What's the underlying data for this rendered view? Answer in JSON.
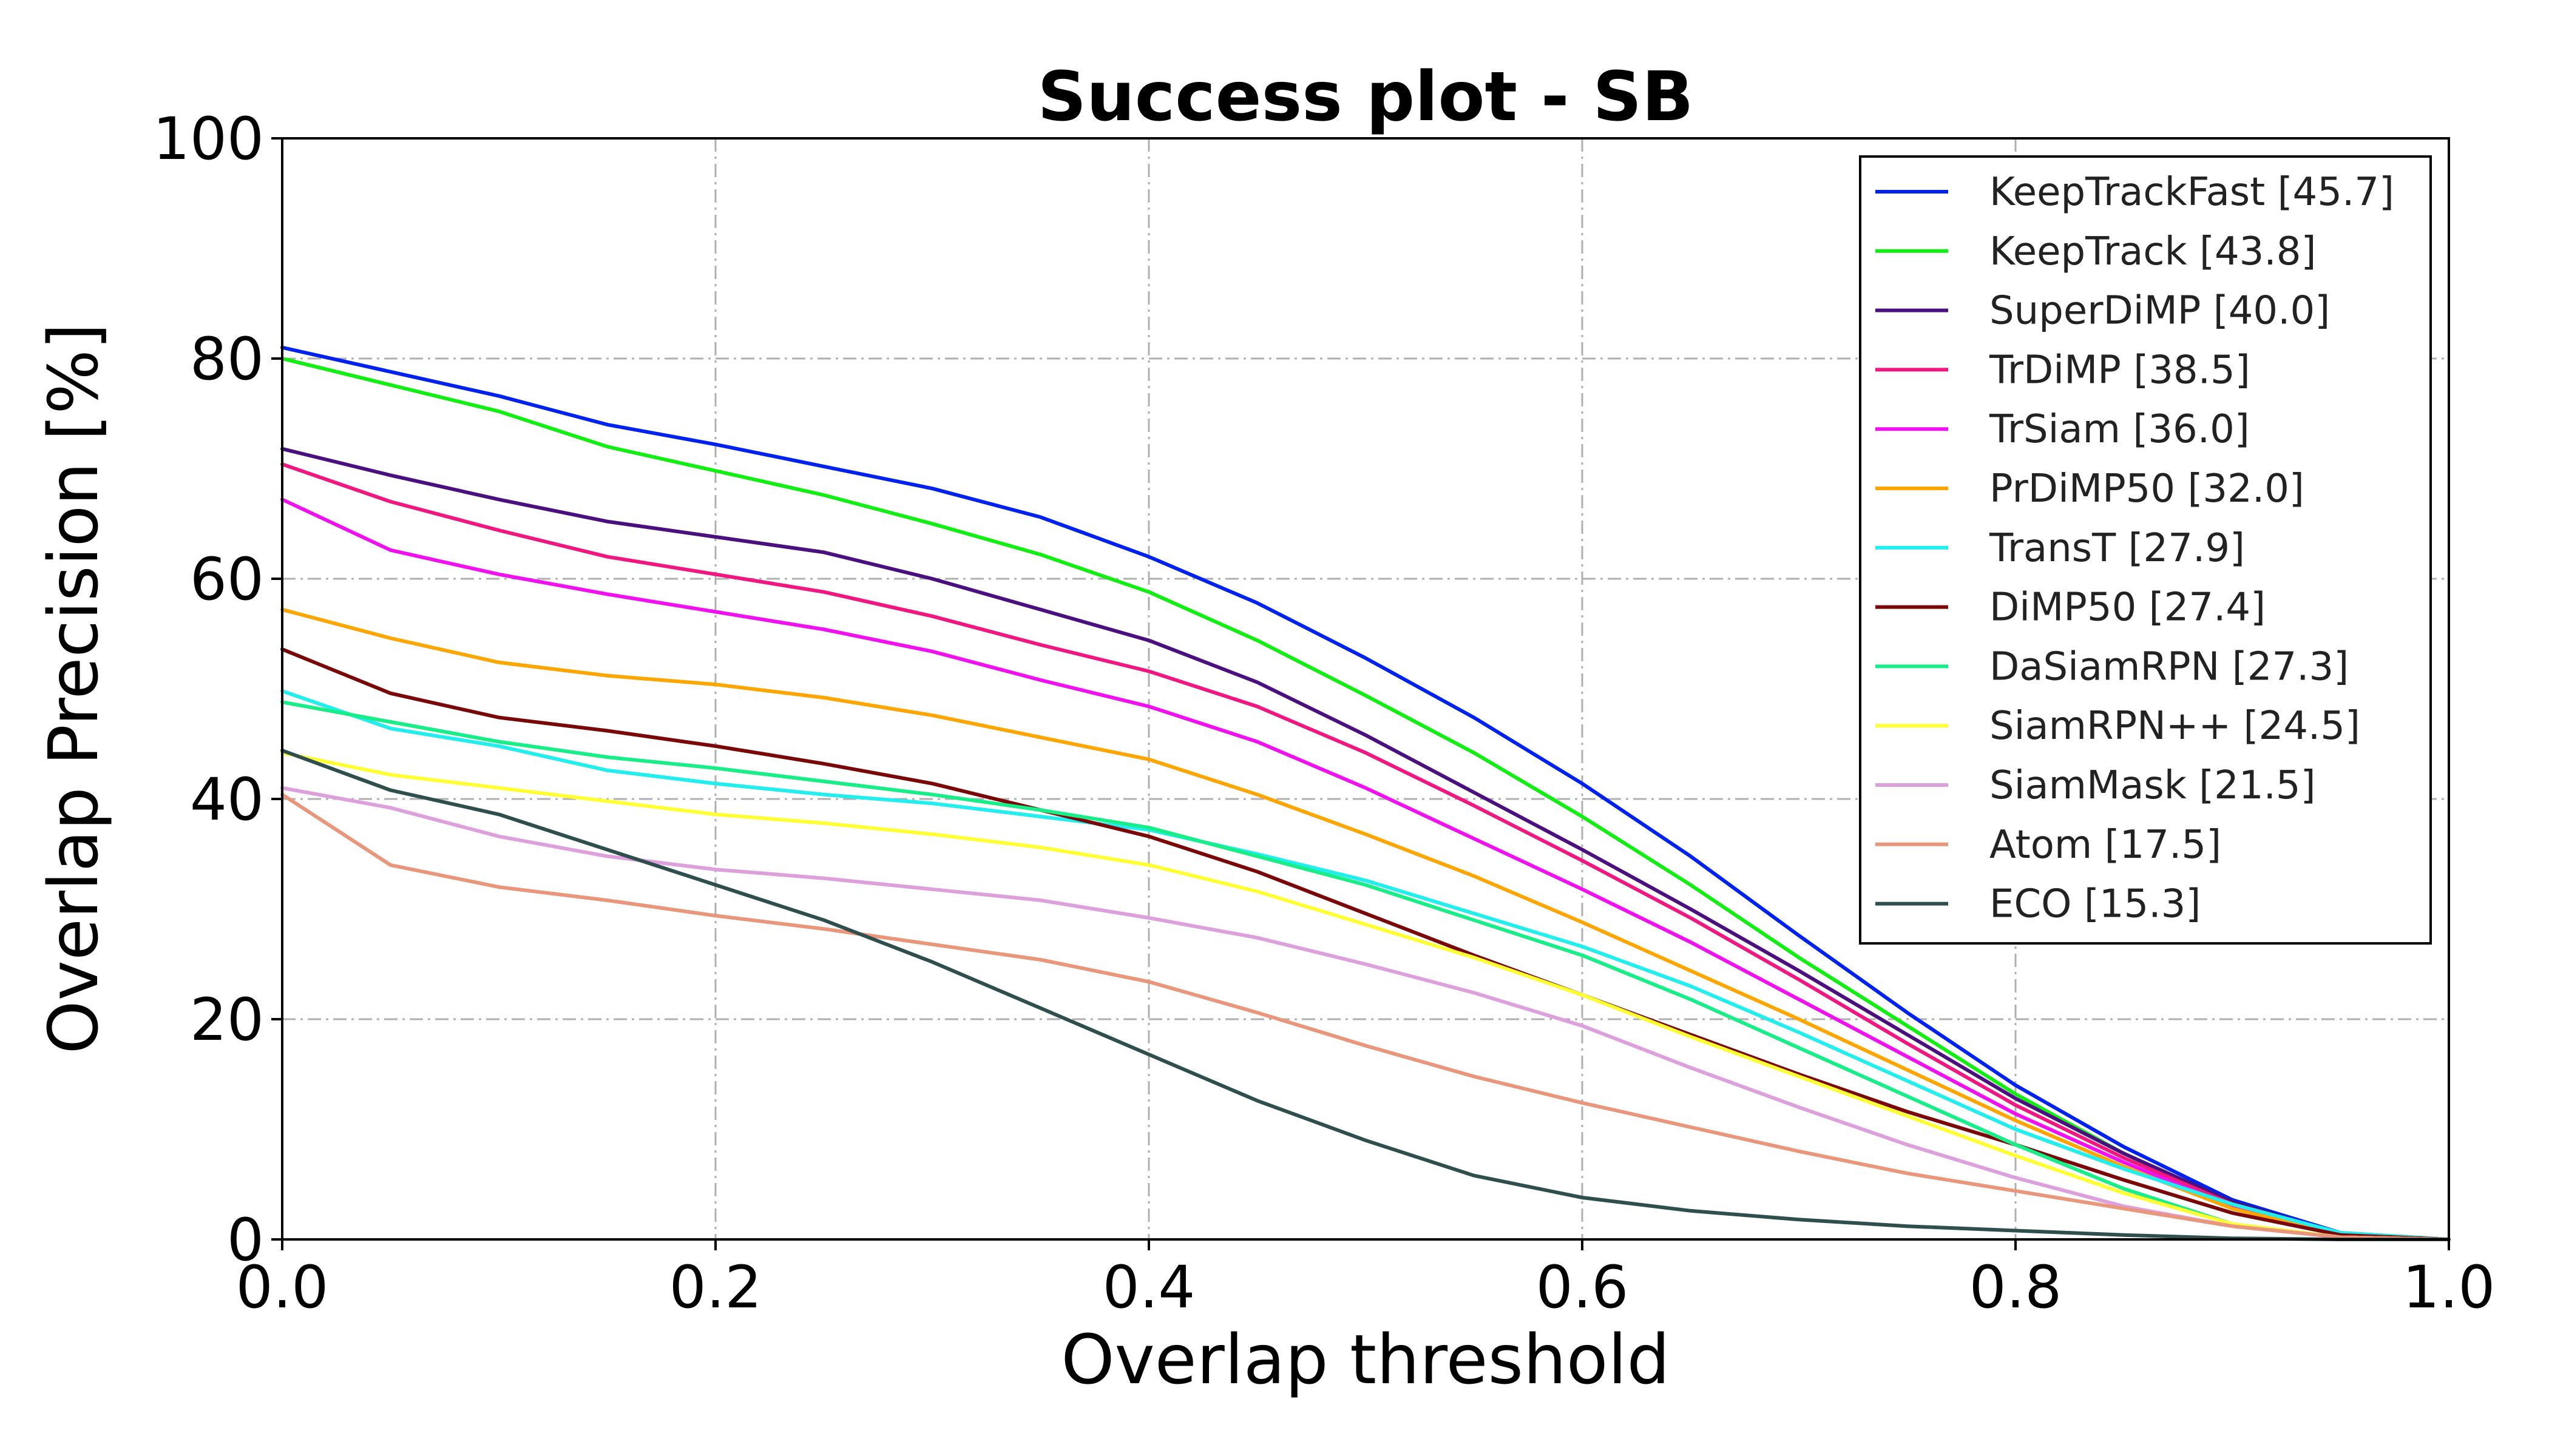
{
  "chart_data": {
    "type": "line",
    "title": "Success plot - SB",
    "xlabel": "Overlap threshold",
    "ylabel": "Overlap Precision [%]",
    "xlim": [
      0.0,
      1.0
    ],
    "ylim": [
      0,
      100
    ],
    "xticks": [
      "0.0",
      "0.2",
      "0.4",
      "0.6",
      "0.8",
      "1.0"
    ],
    "yticks": [
      "0",
      "20",
      "40",
      "60",
      "80",
      "100"
    ],
    "grid": true,
    "legend_position": "top-right",
    "x": [
      0.0,
      0.05,
      0.1,
      0.15,
      0.2,
      0.25,
      0.3,
      0.35,
      0.4,
      0.45,
      0.5,
      0.55,
      0.6,
      0.65,
      0.7,
      0.75,
      0.8,
      0.85,
      0.9,
      0.95,
      1.0
    ],
    "series": [
      {
        "name": "KeepTrackFast [45.7]",
        "color": "#0022ee",
        "values": [
          81.0,
          78.8,
          76.6,
          74.0,
          72.2,
          70.2,
          68.2,
          65.6,
          62.0,
          57.8,
          52.8,
          47.4,
          41.4,
          34.8,
          27.6,
          20.6,
          14.0,
          8.4,
          3.6,
          0.6,
          0.0
        ]
      },
      {
        "name": "KeepTrack [43.8]",
        "color": "#11ee11",
        "values": [
          80.0,
          77.6,
          75.2,
          72.0,
          69.8,
          67.6,
          65.0,
          62.2,
          58.8,
          54.4,
          49.4,
          44.2,
          38.4,
          32.2,
          25.6,
          19.4,
          13.2,
          7.8,
          3.2,
          0.5,
          0.0
        ]
      },
      {
        "name": "SuperDiMP [40.0]",
        "color": "#4b1080",
        "values": [
          71.8,
          69.4,
          67.2,
          65.2,
          63.8,
          62.4,
          60.0,
          57.2,
          54.4,
          50.6,
          45.8,
          40.6,
          35.4,
          30.0,
          24.4,
          18.6,
          12.8,
          7.8,
          3.4,
          0.5,
          0.0
        ]
      },
      {
        "name": "TrDiMP [38.5]",
        "color": "#f01880",
        "values": [
          70.4,
          67.0,
          64.4,
          62.0,
          60.4,
          58.8,
          56.6,
          54.0,
          51.6,
          48.4,
          44.2,
          39.4,
          34.4,
          29.2,
          23.6,
          17.8,
          12.2,
          7.4,
          3.2,
          0.5,
          0.0
        ]
      },
      {
        "name": "TrSiam [36.0]",
        "color": "#f010f0",
        "values": [
          67.2,
          62.6,
          60.4,
          58.6,
          57.0,
          55.4,
          53.4,
          50.8,
          48.4,
          45.2,
          41.0,
          36.4,
          31.8,
          27.0,
          21.8,
          16.6,
          11.4,
          7.0,
          3.0,
          0.5,
          0.0
        ]
      },
      {
        "name": "PrDiMP50 [32.0]",
        "color": "#ffa500",
        "values": [
          57.2,
          54.6,
          52.4,
          51.2,
          50.4,
          49.2,
          47.6,
          45.6,
          43.6,
          40.4,
          36.8,
          33.0,
          28.8,
          24.4,
          20.0,
          15.4,
          10.8,
          6.6,
          2.8,
          0.4,
          0.0
        ]
      },
      {
        "name": "TransT [27.9]",
        "color": "#22eeee",
        "values": [
          49.8,
          46.4,
          44.8,
          42.6,
          41.4,
          40.4,
          39.6,
          38.4,
          37.2,
          35.0,
          32.6,
          29.6,
          26.6,
          23.0,
          18.8,
          14.4,
          10.0,
          6.4,
          3.2,
          0.6,
          0.0
        ]
      },
      {
        "name": "DiMP50 [27.4]",
        "color": "#7a0808",
        "values": [
          53.6,
          49.6,
          47.4,
          46.2,
          44.8,
          43.2,
          41.4,
          39.0,
          36.6,
          33.4,
          29.6,
          25.8,
          22.2,
          18.6,
          15.0,
          11.6,
          8.6,
          5.4,
          2.4,
          0.4,
          0.0
        ]
      },
      {
        "name": "DaSiamRPN [27.3]",
        "color": "#18ee88",
        "values": [
          48.8,
          47.0,
          45.2,
          43.8,
          42.8,
          41.6,
          40.4,
          39.0,
          37.4,
          34.8,
          32.2,
          29.0,
          25.8,
          21.8,
          17.4,
          13.0,
          8.6,
          4.6,
          1.4,
          0.2,
          0.0
        ]
      },
      {
        "name": "SiamRPN++ [24.5]",
        "color": "#ffff33",
        "values": [
          44.2,
          42.2,
          41.0,
          39.8,
          38.6,
          37.8,
          36.8,
          35.6,
          34.0,
          31.6,
          28.6,
          25.6,
          22.2,
          18.4,
          14.8,
          11.2,
          7.6,
          4.2,
          1.4,
          0.2,
          0.0
        ]
      },
      {
        "name": "SiamMask [21.5]",
        "color": "#dda0dd",
        "values": [
          41.0,
          39.2,
          36.6,
          34.8,
          33.6,
          32.8,
          31.8,
          30.8,
          29.2,
          27.4,
          25.0,
          22.4,
          19.4,
          15.6,
          12.0,
          8.6,
          5.6,
          3.0,
          1.2,
          0.2,
          0.0
        ]
      },
      {
        "name": "Atom [17.5]",
        "color": "#e9967a",
        "values": [
          40.4,
          34.0,
          32.0,
          30.8,
          29.4,
          28.2,
          26.8,
          25.4,
          23.4,
          20.6,
          17.6,
          14.8,
          12.4,
          10.2,
          8.0,
          6.0,
          4.4,
          2.8,
          1.2,
          0.2,
          0.0
        ]
      },
      {
        "name": "ECO [15.3]",
        "color": "#2f4f4f",
        "values": [
          44.4,
          40.8,
          38.6,
          35.4,
          32.2,
          29.0,
          25.2,
          21.0,
          16.8,
          12.6,
          9.0,
          5.8,
          3.8,
          2.6,
          1.8,
          1.2,
          0.8,
          0.4,
          0.1,
          0.0,
          0.0
        ]
      }
    ]
  }
}
